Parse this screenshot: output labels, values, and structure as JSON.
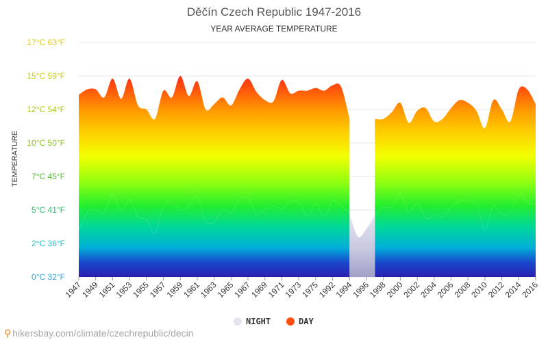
{
  "chart_data": {
    "type": "area",
    "title": "Děčín Czech Republic 1947-2016",
    "subtitle": "YEAR AVERAGE TEMPERATURE",
    "ylabel": "TEMPERATURE",
    "ylim": [
      0,
      17.5
    ],
    "y_ticks": [
      {
        "value": 0,
        "label": "0°C 32°F",
        "color": "#2aa9e0"
      },
      {
        "value": 2.5,
        "label": "2°C 36°F",
        "color": "#1dc0c8"
      },
      {
        "value": 5,
        "label": "5°C 41°F",
        "color": "#2dbd6e"
      },
      {
        "value": 7.5,
        "label": "7°C 45°F",
        "color": "#52bd2a"
      },
      {
        "value": 10,
        "label": "10°C 50°F",
        "color": "#8ac21c"
      },
      {
        "value": 12.5,
        "label": "12°C 54°F",
        "color": "#b4c40f"
      },
      {
        "value": 15,
        "label": "15°C 59°F",
        "color": "#c9cf14"
      },
      {
        "value": 17.5,
        "label": "17°C 63°F",
        "color": "#e6c812"
      }
    ],
    "x_labels": [
      "1947",
      "1949",
      "1951",
      "1953",
      "1955",
      "1957",
      "1959",
      "1961",
      "1963",
      "1965",
      "1967",
      "1969",
      "1971",
      "1973",
      "1975",
      "1992",
      "1994",
      "1996",
      "1998",
      "2000",
      "2002",
      "2004",
      "2006",
      "2008",
      "2010",
      "2012",
      "2014",
      "2016"
    ],
    "series": [
      {
        "name": "DAY",
        "color": "#ff4400",
        "values": [
          13.6,
          14.0,
          14.0,
          13.4,
          14.8,
          13.3,
          14.8,
          12.8,
          12.5,
          11.8,
          13.9,
          13.4,
          15.0,
          13.5,
          14.6,
          12.5,
          12.9,
          13.4,
          12.8,
          14.0,
          14.8,
          13.8,
          13.2,
          13.1,
          14.7,
          13.7,
          13.9,
          13.9,
          14.1,
          13.9,
          14.3,
          14.2,
          11.8,
          null,
          null,
          11.8,
          11.8,
          12.3,
          13.0,
          11.5,
          12.4,
          12.6,
          11.6,
          11.8,
          12.6,
          13.2,
          13.0,
          12.4,
          11.1,
          13.2,
          12.5,
          11.6,
          14.0,
          14.0,
          12.9
        ]
      },
      {
        "name": "NIGHT",
        "color": "#e8eaf6",
        "values": [
          3.5,
          4.8,
          5.0,
          4.8,
          6.2,
          4.9,
          5.8,
          4.5,
          4.3,
          3.3,
          5.3,
          5.5,
          5.0,
          5.3,
          6.0,
          4.2,
          4.1,
          5.0,
          4.8,
          5.8,
          5.9,
          4.7,
          5.0,
          5.3,
          5.1,
          5.6,
          5.6,
          4.5,
          5.5,
          4.5,
          5.7,
          5.3,
          4.7,
          3.0,
          3.6,
          4.6,
          5.2,
          5.2,
          6.2,
          4.8,
          5.5,
          4.4,
          4.6,
          4.5,
          5.2,
          5.7,
          5.6,
          5.4,
          3.5,
          5.3,
          4.7,
          4.8,
          6.2,
          5.6,
          5.4
        ]
      }
    ],
    "legend": [
      "NIGHT",
      "DAY"
    ],
    "legend_colors": {
      "NIGHT": "#e3e6ee",
      "DAY": "#ff5011"
    },
    "legend_position": "bottom-center",
    "grid": true
  },
  "source": "hikersbay.com/climate/czechrepublic/decin"
}
